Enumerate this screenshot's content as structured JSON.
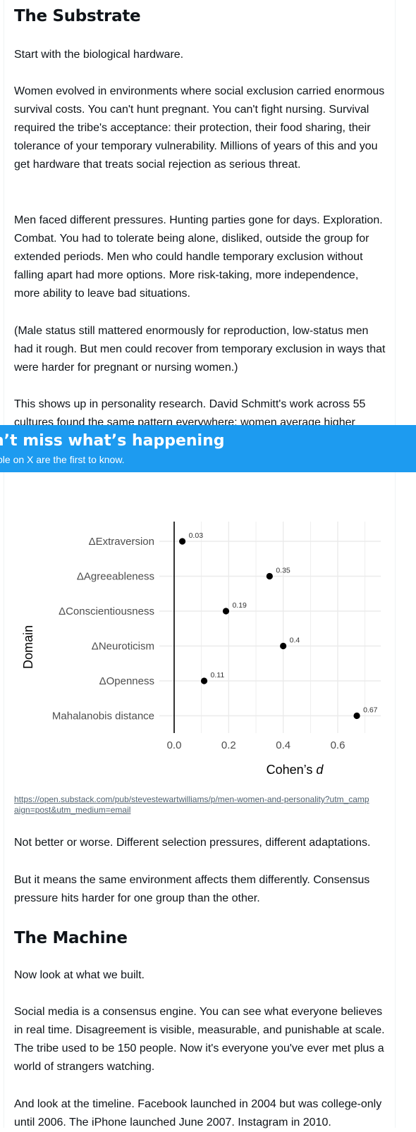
{
  "article": {
    "heading_substrate": "The Substrate",
    "p1": "Start with the biological hardware.",
    "p2": "Women evolved in environments where social exclusion carried enormous survival costs. You can't hunt pregnant. You can't fight nursing. Survival required the tribe's acceptance: their protection, their food sharing, their tolerance of your temporary vulnerability. Millions of years of this and you get hardware that treats social rejection as serious threat.",
    "p3": "Men faced different pressures. Hunting parties gone for days. Exploration. Combat. You had to tolerate being alone, disliked, outside the group for extended periods. Men who could handle temporary exclusion without falling apart had more options. More risk-taking, more independence, more ability to leave bad situations.",
    "p4": "(Male status still mattered enormously for reproduction, low-status men had it rough. But men could recover from temporary exclusion in ways that were harder for pregnant or nursing women.)",
    "p5": "This shows up in personality research. David Schmitt's work across 55 cultures found the same pattern everywhere: women average higher disagreement and social conflict. The differences aren't huge but they're consistent across every culture studied.",
    "source_link": "https://open.substack.com/pub/stevestewartwilliams/p/men-women-and-personality?utm_campaign=post&utm_medium=email",
    "p6": "Not better or worse. Different selection pressures, different adaptations.",
    "p7": "But it means the same environment affects them differently. Consensus pressure hits harder for one group than the other.",
    "heading_machine": "The Machine",
    "p8": "Now look at what we built.",
    "p9": "Social media is a consensus engine. You can see what everyone believes in real time. Disagreement is visible, measurable, and punishable at scale. The tribe used to be 150 people. Now it's everyone you've ever met plus a world of strangers watching.",
    "p10": "And look at the timeline. Facebook launched in 2004 but was college-only until 2006. The iPhone launched June 2007. Instagram in 2010."
  },
  "banner": {
    "title": "n’t miss what’s happening",
    "subtitle": "ple on X are the first to know."
  },
  "colors": {
    "banner_bg": "#1d9bf0",
    "link": "#536471",
    "text": "#0f1419"
  },
  "chart_data": {
    "type": "scatter",
    "categories": [
      "ΔExtraversion",
      "ΔAgreeableness",
      "ΔConscientiousness",
      "ΔNeuroticism",
      "ΔOpenness",
      "Mahalanobis distance"
    ],
    "values": [
      0.03,
      0.35,
      0.19,
      0.4,
      0.11,
      0.67
    ],
    "value_labels": [
      "0.03",
      "0.35",
      "0.19",
      "0.4",
      "0.11",
      "0.67"
    ],
    "x_ticks": [
      "0.0",
      "0.2",
      "0.4",
      "0.6"
    ],
    "xlim": [
      0,
      0.7
    ],
    "xlabel_main": "Cohen’s ",
    "xlabel_italic": "d",
    "ylabel": "Domain",
    "grid": true
  }
}
